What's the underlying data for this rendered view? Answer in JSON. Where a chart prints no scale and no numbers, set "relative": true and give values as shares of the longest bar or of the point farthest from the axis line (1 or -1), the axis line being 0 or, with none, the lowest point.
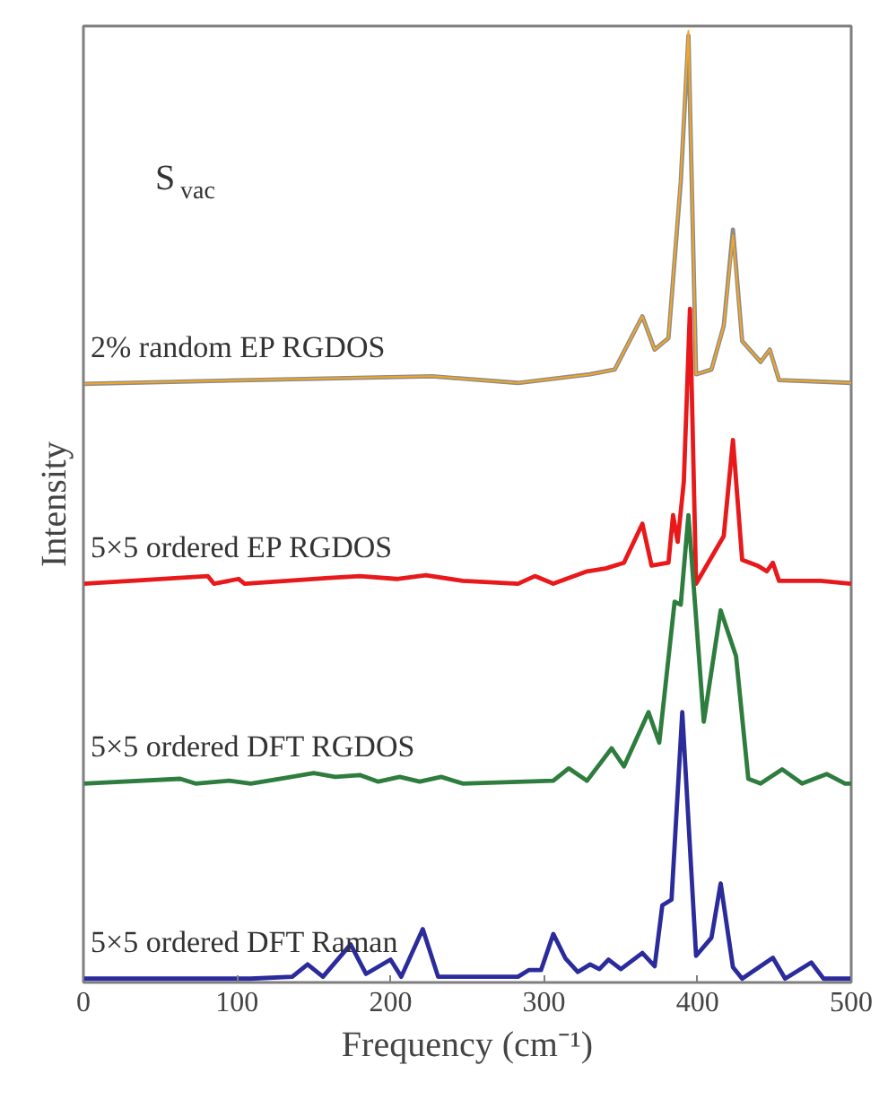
{
  "chart_data": {
    "type": "line",
    "relative": true,
    "xlabel": "Frequency (cm⁻¹)",
    "ylabel": "Intensity",
    "annotations": [
      "S$_{vac}$"
    ],
    "xlim": [
      0,
      500
    ],
    "xticks": [
      0,
      100,
      200,
      300,
      400,
      500
    ],
    "grid": false,
    "marker": "none",
    "line_style": "solid",
    "series": [
      {
        "name": "2% random EP RGDOS",
        "color": "#8c8c8c",
        "x": [
          0,
          109,
          227,
          283,
          330,
          346,
          364,
          372,
          381,
          389,
          394,
          399,
          409,
          417,
          423,
          429,
          441,
          447,
          453,
          500
        ],
        "values": [
          0.629,
          0.633,
          0.637,
          0.63,
          0.639,
          0.644,
          0.7,
          0.665,
          0.677,
          0.841,
          0.995,
          0.639,
          0.644,
          0.69,
          0.791,
          0.674,
          0.652,
          0.665,
          0.633,
          0.63
        ]
      },
      {
        "color": "#f5a623",
        "x": [
          0,
          109,
          227,
          283,
          330,
          346,
          364,
          372,
          381,
          389,
          394,
          399,
          409,
          417,
          423,
          429,
          441,
          447,
          453,
          500
        ],
        "values": [
          0.629,
          0.633,
          0.637,
          0.63,
          0.639,
          0.644,
          0.7,
          0.665,
          0.677,
          0.845,
          1.0,
          0.639,
          0.644,
          0.69,
          0.785,
          0.674,
          0.652,
          0.665,
          0.633,
          0.63
        ]
      },
      {
        "name": "5×5 ordered EP RGDOS",
        "color": "#e8191b",
        "x": [
          0,
          81,
          85,
          101,
          105,
          160,
          180,
          204,
          223,
          247,
          283,
          294,
          306,
          328,
          340,
          352,
          364,
          370,
          381,
          384,
          387,
          391,
          395,
          399,
          417,
          423,
          429,
          439,
          445,
          449,
          453,
          480,
          500
        ],
        "values": [
          0.419,
          0.427,
          0.419,
          0.424,
          0.419,
          0.425,
          0.427,
          0.424,
          0.428,
          0.422,
          0.419,
          0.427,
          0.419,
          0.432,
          0.435,
          0.441,
          0.482,
          0.438,
          0.441,
          0.491,
          0.463,
          0.526,
          0.708,
          0.419,
          0.469,
          0.57,
          0.444,
          0.438,
          0.432,
          0.441,
          0.422,
          0.422,
          0.419
        ]
      },
      {
        "name": "5×5 ordered DFT RGDOS",
        "color": "#2e7d3e",
        "x": [
          0,
          63,
          73,
          95,
          109,
          132,
          150,
          164,
          180,
          192,
          206,
          219,
          233,
          247,
          306,
          316,
          328,
          344,
          352,
          368,
          375,
          385,
          389,
          394,
          404,
          415,
          425,
          433,
          441,
          455,
          468,
          484,
          496,
          500
        ],
        "values": [
          0.209,
          0.214,
          0.209,
          0.212,
          0.209,
          0.215,
          0.22,
          0.216,
          0.218,
          0.211,
          0.216,
          0.211,
          0.216,
          0.209,
          0.212,
          0.225,
          0.212,
          0.246,
          0.227,
          0.284,
          0.252,
          0.4,
          0.397,
          0.491,
          0.274,
          0.391,
          0.343,
          0.214,
          0.209,
          0.224,
          0.209,
          0.219,
          0.209,
          0.209
        ]
      },
      {
        "name": "5×5 ordered DFT Raman",
        "color": "#2b2b9c",
        "x": [
          0,
          109,
          136,
          146,
          156,
          174,
          184,
          200,
          207,
          221,
          231,
          283,
          290,
          298,
          306,
          314,
          322,
          330,
          336,
          342,
          350,
          364,
          372,
          377,
          383,
          390,
          399,
          409,
          415,
          423,
          429,
          449,
          457,
          474,
          482,
          500
        ],
        "values": [
          0.004,
          0.004,
          0.006,
          0.019,
          0.006,
          0.04,
          0.009,
          0.024,
          0.006,
          0.056,
          0.006,
          0.006,
          0.013,
          0.013,
          0.051,
          0.025,
          0.011,
          0.019,
          0.014,
          0.024,
          0.014,
          0.031,
          0.017,
          0.081,
          0.087,
          0.284,
          0.028,
          0.047,
          0.104,
          0.016,
          0.004,
          0.026,
          0.004,
          0.021,
          0.004,
          0.004
        ]
      }
    ]
  }
}
